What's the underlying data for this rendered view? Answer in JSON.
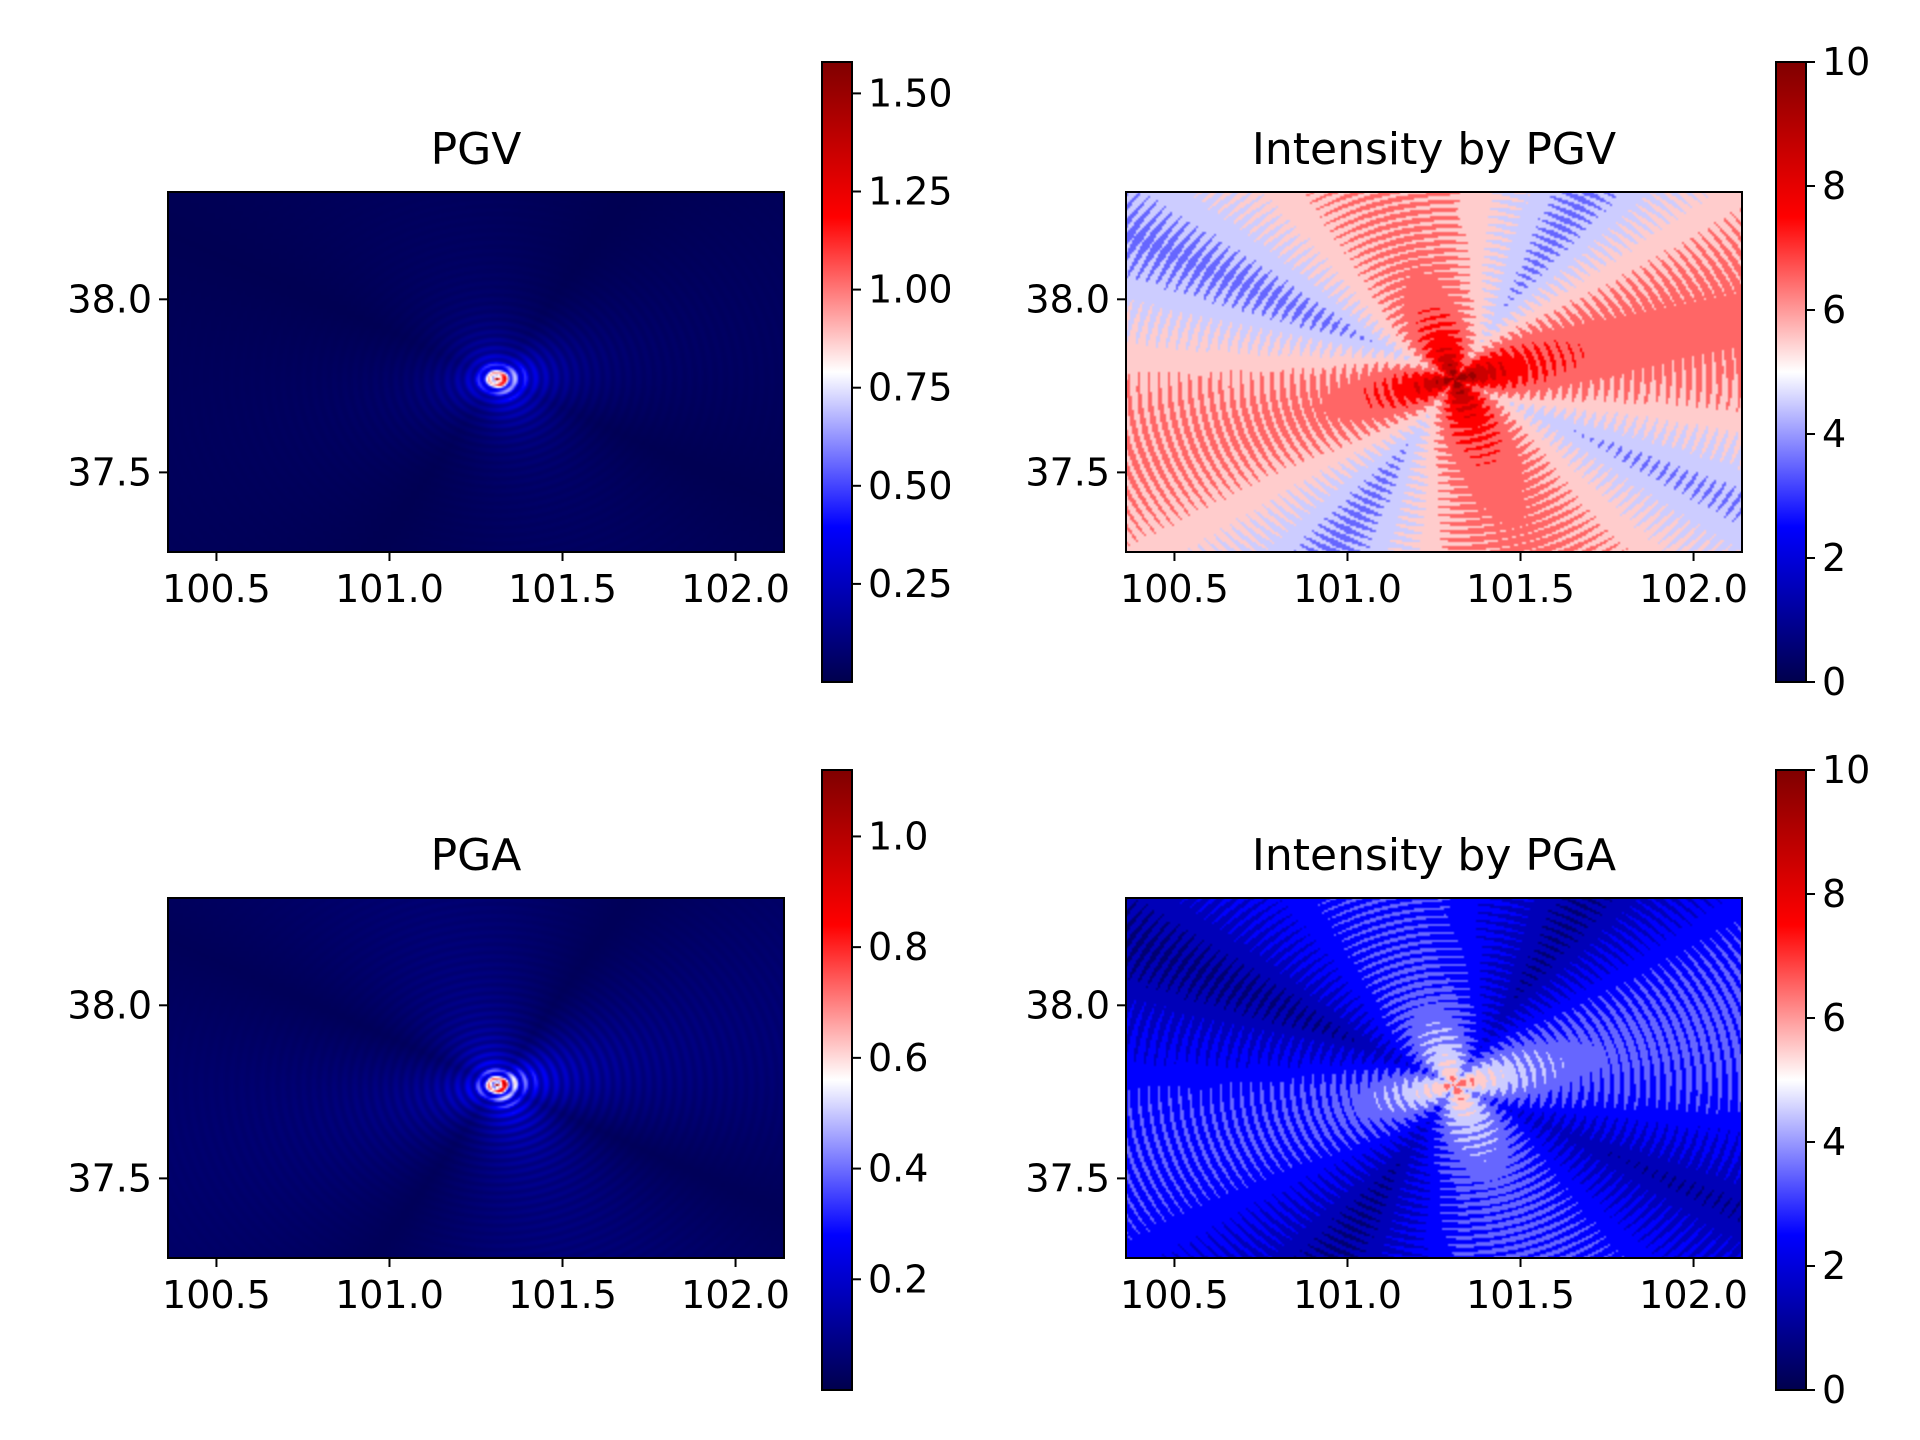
{
  "chart_data": [
    {
      "type": "heatmap",
      "title": "PGV",
      "xlabel": "",
      "ylabel": "",
      "xlim": [
        100.36,
        102.14
      ],
      "ylim": [
        37.27,
        38.31
      ],
      "xticks": [
        "100.5",
        "101.0",
        "101.5",
        "102.0"
      ],
      "yticks": [
        "37.5",
        "38.0"
      ],
      "xtick_values": [
        100.5,
        101.0,
        101.5,
        102.0
      ],
      "ytick_values": [
        37.5,
        38.0
      ],
      "colormap": "seismic",
      "colorbar": {
        "min": 0,
        "max": 1.58,
        "ticks": [
          "0.25",
          "0.50",
          "0.75",
          "1.00",
          "1.25",
          "1.50"
        ],
        "tick_values": [
          0.25,
          0.5,
          0.75,
          1.0,
          1.25,
          1.5
        ]
      },
      "field": {
        "epicenter": [
          101.31,
          37.77
        ],
        "peak": 1.58,
        "background": 0.02,
        "lobe_strength": 0.1,
        "banding": 0.5,
        "cont_decay": 0.35,
        "peak_decay": 0.032,
        "directivity": "east"
      }
    },
    {
      "type": "heatmap",
      "title": "Intensity by PGV",
      "xlabel": "",
      "ylabel": "",
      "xlim": [
        100.36,
        102.14
      ],
      "ylim": [
        37.27,
        38.31
      ],
      "xticks": [
        "100.5",
        "101.0",
        "101.5",
        "102.0"
      ],
      "yticks": [
        "37.5",
        "38.0"
      ],
      "xtick_values": [
        100.5,
        101.0,
        101.5,
        102.0
      ],
      "ytick_values": [
        37.5,
        38.0
      ],
      "colormap": "seismic",
      "colorbar": {
        "min": 0,
        "max": 10,
        "ticks": [
          "0",
          "2",
          "4",
          "6",
          "8",
          "10"
        ],
        "tick_values": [
          0,
          2,
          4,
          6,
          8,
          10
        ]
      },
      "field": {
        "epicenter": [
          101.31,
          37.77
        ],
        "peak": 9.5,
        "background": 5.5,
        "lobe_strength": 1.2,
        "banding": 0.35,
        "levels": [
          3.5,
          4.5,
          5.5,
          6.5,
          7.5,
          8.5,
          9.5
        ],
        "directivity": "east"
      }
    },
    {
      "type": "heatmap",
      "title": "PGA",
      "xlabel": "",
      "ylabel": "",
      "xlim": [
        100.36,
        102.14
      ],
      "ylim": [
        37.27,
        38.31
      ],
      "xticks": [
        "100.5",
        "101.0",
        "101.5",
        "102.0"
      ],
      "yticks": [
        "37.5",
        "38.0"
      ],
      "xtick_values": [
        100.5,
        101.0,
        101.5,
        102.0
      ],
      "ytick_values": [
        37.5,
        38.0
      ],
      "colormap": "seismic",
      "colorbar": {
        "min": 0,
        "max": 1.12,
        "ticks": [
          "0.2",
          "0.4",
          "0.6",
          "0.8",
          "1.0"
        ],
        "tick_values": [
          0.2,
          0.4,
          0.6,
          0.8,
          1.0
        ]
      },
      "field": {
        "epicenter": [
          101.31,
          37.77
        ],
        "peak": 1.12,
        "background": 0.03,
        "lobe_strength": 0.16,
        "banding": 0.6,
        "cont_decay": 0.3,
        "peak_decay": 0.04,
        "directivity": "east"
      }
    },
    {
      "type": "heatmap",
      "title": "Intensity by PGA",
      "xlabel": "",
      "ylabel": "",
      "xlim": [
        100.36,
        102.14
      ],
      "ylim": [
        37.27,
        38.31
      ],
      "xticks": [
        "100.5",
        "101.0",
        "101.5",
        "102.0"
      ],
      "yticks": [
        "37.5",
        "38.0"
      ],
      "xtick_values": [
        100.5,
        101.0,
        101.5,
        102.0
      ],
      "ytick_values": [
        37.5,
        38.0
      ],
      "colormap": "seismic",
      "colorbar": {
        "min": 0,
        "max": 10,
        "ticks": [
          "0",
          "2",
          "4",
          "6",
          "8",
          "10"
        ],
        "tick_values": [
          0,
          2,
          4,
          6,
          8,
          10
        ]
      },
      "field": {
        "epicenter": [
          101.31,
          37.77
        ],
        "peak": 6.5,
        "background": 2.5,
        "lobe_strength": 1.0,
        "banding": 0.4,
        "levels": [
          1.5,
          2.5,
          3.5,
          4.5,
          5.5,
          6.5
        ],
        "directivity": "east"
      }
    }
  ]
}
